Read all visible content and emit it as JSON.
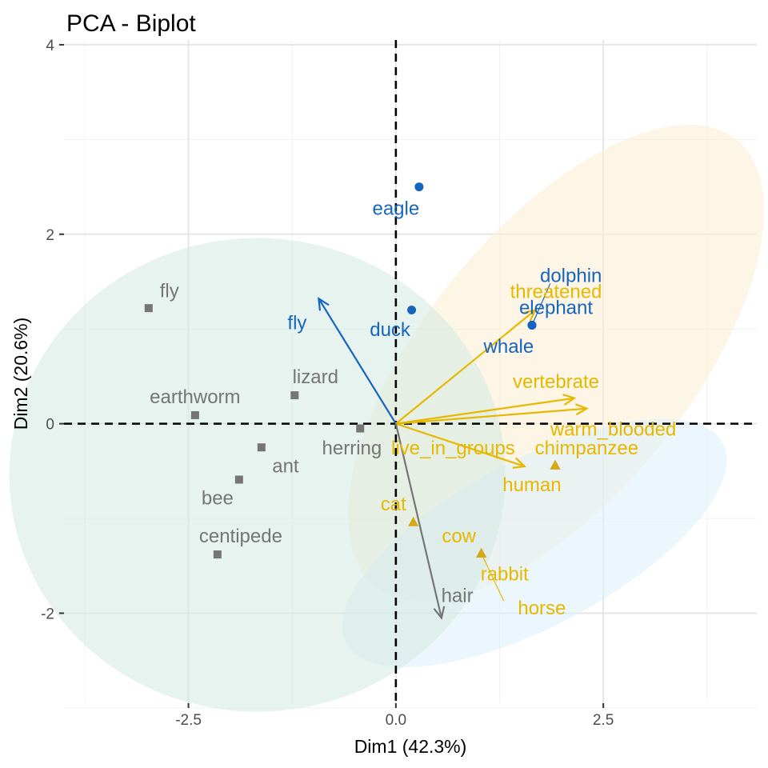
{
  "colors": {
    "group_1": "#1565c0",
    "group_2": "#757575",
    "group_3": "#e6b800",
    "grid_major": "#e6e6e6",
    "grid_minor": "#f2f2f2"
  },
  "chart_data": {
    "type": "scatter",
    "title": "PCA - Biplot",
    "xlabel": "Dim1 (42.3%)",
    "ylabel": "Dim2 (20.6%)",
    "xlim": [
      -4.0,
      4.35
    ],
    "ylim": [
      -2.95,
      4.05
    ],
    "x_ticks": [
      -2.5,
      0,
      2.5
    ],
    "x_tick_labels": [
      "-2.5",
      "0.0",
      "2.5"
    ],
    "y_ticks": [
      -2,
      0,
      2,
      4
    ],
    "y_tick_labels": [
      "-2",
      "0",
      "2",
      "4"
    ],
    "grid": true,
    "legend": "none",
    "reference_lines": {
      "x": 0,
      "y": 0,
      "style": "dashed"
    },
    "ellipses": [
      {
        "group": "group_3",
        "cx": 1.93,
        "cy": 0.64,
        "rx": 3.46,
        "ry": 1.6,
        "angle_deg": 51,
        "fill": "#fcedd2"
      },
      {
        "group": "group_1",
        "cx": 1.67,
        "cy": -1.26,
        "rx": 2.57,
        "ry": 1.0,
        "angle_deg": 28,
        "fill": "#ddeefb"
      },
      {
        "group": "group_2",
        "cx": -1.67,
        "cy": -0.54,
        "rx": 2.5,
        "ry": 2.5,
        "angle_deg": 0,
        "fill": "#d3eae1",
        "x_radius": 2.99
      }
    ],
    "individuals": [
      {
        "name": "eagle",
        "group": "group_1",
        "x": 0.28,
        "y": 2.5,
        "label_x": 0.0,
        "label_y": 2.26
      },
      {
        "name": "duck",
        "group": "group_1",
        "x": 0.19,
        "y": 1.2,
        "label_x": -0.07,
        "label_y": 0.98
      },
      {
        "name": "dolphin",
        "group": "group_1",
        "x": 1.64,
        "y": 1.04,
        "label_x": 2.11,
        "label_y": 1.55
      },
      {
        "name": "elephant",
        "group": "group_1",
        "x": 1.64,
        "y": 1.04,
        "label_x": 1.93,
        "label_y": 1.21
      },
      {
        "name": "whale",
        "group": "group_1",
        "x": 1.64,
        "y": 1.04,
        "label_x": 1.36,
        "label_y": 0.8
      },
      {
        "name": "fly",
        "group": "group_2",
        "x": -2.98,
        "y": 1.22,
        "label_x": -2.73,
        "label_y": 1.39
      },
      {
        "name": "lizard",
        "group": "group_2",
        "x": -1.22,
        "y": 0.3,
        "label_x": -0.97,
        "label_y": 0.48
      },
      {
        "name": "earthworm",
        "group": "group_2",
        "x": -2.42,
        "y": 0.09,
        "label_x": -2.42,
        "label_y": 0.27
      },
      {
        "name": "herring",
        "group": "group_2",
        "x": -0.43,
        "y": -0.05,
        "label_x": -0.53,
        "label_y": -0.27
      },
      {
        "name": "ant",
        "group": "group_2",
        "x": -1.62,
        "y": -0.25,
        "label_x": -1.33,
        "label_y": -0.46
      },
      {
        "name": "bee",
        "group": "group_2",
        "x": -1.89,
        "y": -0.59,
        "label_x": -2.15,
        "label_y": -0.8
      },
      {
        "name": "centipede",
        "group": "group_2",
        "x": -2.15,
        "y": -1.38,
        "label_x": -1.87,
        "label_y": -1.2
      },
      {
        "name": "chimpanzee",
        "group": "group_3",
        "x": 1.92,
        "y": -0.44,
        "label_x": 2.3,
        "label_y": -0.27
      },
      {
        "name": "human",
        "group": "group_3",
        "x": 1.92,
        "y": -0.44,
        "label_x": 1.64,
        "label_y": -0.66
      },
      {
        "name": "cat",
        "group": "group_3",
        "x": 0.21,
        "y": -1.04,
        "label_x": -0.03,
        "label_y": -0.86
      },
      {
        "name": "cow",
        "group": "group_3",
        "x": 1.03,
        "y": -1.37,
        "label_x": 0.76,
        "label_y": -1.2
      },
      {
        "name": "rabbit",
        "group": "group_3",
        "x": 1.03,
        "y": -1.37,
        "label_x": 1.31,
        "label_y": -1.6
      },
      {
        "name": "horse",
        "group": "group_3",
        "x": 1.03,
        "y": -1.37,
        "label_x": 1.76,
        "label_y": -1.96
      }
    ],
    "label_leaders": [
      {
        "from": "dolphin",
        "x1": 1.64,
        "y1": 1.04,
        "x2": 1.86,
        "y2": 1.48
      },
      {
        "from": "horse",
        "x1": 1.03,
        "y1": -1.37,
        "x2": 1.3,
        "y2": -1.87
      }
    ],
    "variables": [
      {
        "name": "fly",
        "group": "group_1",
        "x": -0.93,
        "y": 1.32,
        "label_x": -1.19,
        "label_y": 1.05
      },
      {
        "name": "threatened",
        "group": "group_3",
        "x": 1.68,
        "y": 1.2,
        "label_x": 1.93,
        "label_y": 1.38
      },
      {
        "name": "vertebrate",
        "group": "group_3",
        "x": 2.15,
        "y": 0.27,
        "label_x": 1.93,
        "label_y": 0.43
      },
      {
        "name": "warm_blooded",
        "group": "group_3",
        "x": 2.3,
        "y": 0.16,
        "label_x": 2.62,
        "label_y": -0.07
      },
      {
        "name": "live_in_groups",
        "group": "group_3",
        "x": 1.55,
        "y": -0.45,
        "label_x": 0.69,
        "label_y": -0.27
      },
      {
        "name": "hair",
        "group": "group_2",
        "x": 0.55,
        "y": -2.05,
        "label_x": 0.74,
        "label_y": -1.83
      }
    ]
  }
}
